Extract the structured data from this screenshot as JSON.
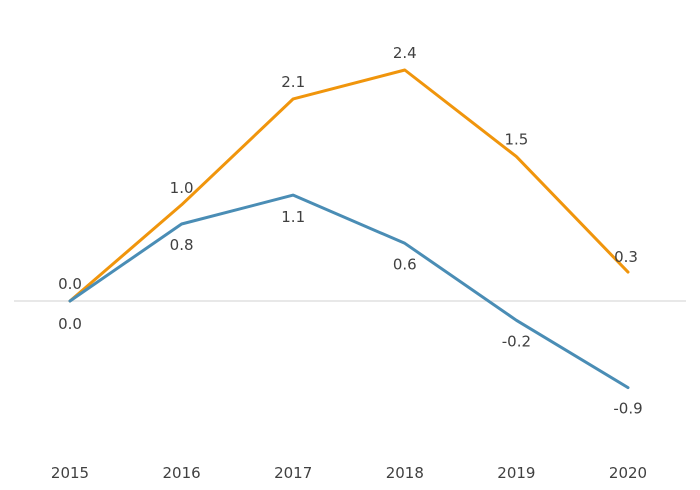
{
  "chart_data": {
    "type": "line",
    "categories": [
      "2015",
      "2016",
      "2017",
      "2018",
      "2019",
      "2020"
    ],
    "series": [
      {
        "values": [
          0.0,
          1.0,
          2.1,
          2.4,
          1.5,
          0.3
        ],
        "labels": [
          "0.0",
          "1.0",
          "2.1",
          "2.4",
          "1.5",
          "0.3"
        ],
        "color": "#f0950c"
      },
      {
        "values": [
          0.0,
          0.8,
          1.1,
          0.6,
          -0.2,
          -0.9
        ],
        "labels": [
          "0.0",
          "0.8",
          "1.1",
          "0.6",
          "-0.2",
          "-0.9"
        ],
        "color": "#4a8db5"
      }
    ],
    "ylim": [
      -1.5,
      2.9
    ],
    "zero_line": true,
    "grid": false,
    "legend": "none",
    "title": "",
    "xlabel": "",
    "ylabel": ""
  }
}
